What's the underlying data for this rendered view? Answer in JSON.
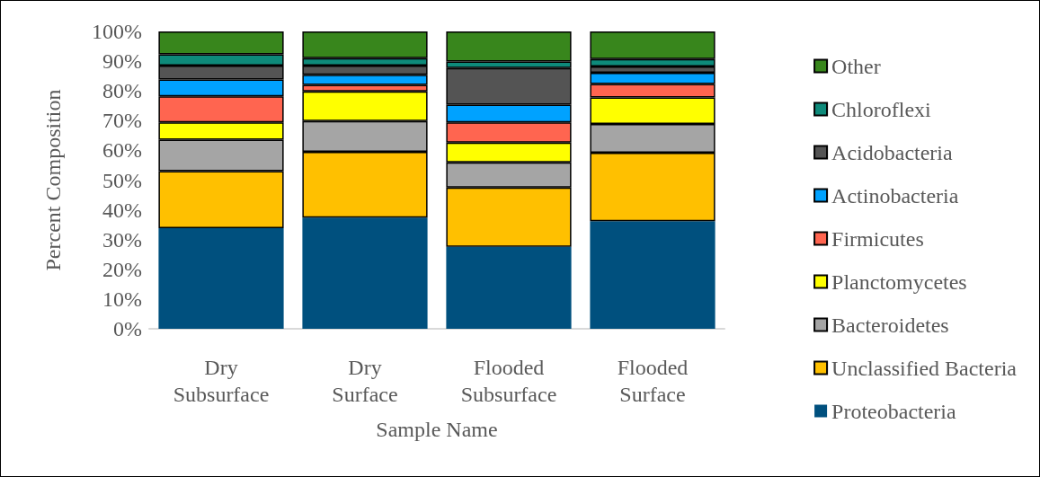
{
  "chart_data": {
    "type": "bar",
    "stacked": true,
    "xlabel": "Sample Name",
    "ylabel": "Percent Composition",
    "categories": [
      "Dry\nSubsurface",
      "Dry\nSurface",
      "Flooded\nSubsurface",
      "Flooded\nSurface"
    ],
    "ylim": [
      0,
      100
    ],
    "yticks": [
      {
        "value": 0,
        "label": "0%"
      },
      {
        "value": 10,
        "label": "10%"
      },
      {
        "value": 20,
        "label": "20%"
      },
      {
        "value": 30,
        "label": "30%"
      },
      {
        "value": 40,
        "label": "40%"
      },
      {
        "value": 50,
        "label": "50%"
      },
      {
        "value": 60,
        "label": "60%"
      },
      {
        "value": 70,
        "label": "70%"
      },
      {
        "value": 80,
        "label": "80%"
      },
      {
        "value": 90,
        "label": "90%"
      },
      {
        "value": 100,
        "label": "100%"
      }
    ],
    "grid": false,
    "legend": "right",
    "series": [
      {
        "name": "Proteobacteria",
        "color": "#00507e",
        "values": [
          33.8,
          37.4,
          27.6,
          36.2
        ]
      },
      {
        "name": "Unclassified Bacteria",
        "color": "#ffc000",
        "values": [
          19.2,
          22.1,
          19.9,
          23.0
        ]
      },
      {
        "name": "Bacteroidetes",
        "color": "#a5a5a5",
        "values": [
          10.6,
          10.4,
          8.5,
          9.7
        ]
      },
      {
        "name": "Planctomycetes",
        "color": "#ffff00",
        "values": [
          5.8,
          9.9,
          6.6,
          8.9
        ]
      },
      {
        "name": "Firmicutes",
        "color": "#ff6550",
        "values": [
          8.8,
          2.2,
          6.8,
          4.5
        ]
      },
      {
        "name": "Actinobacteria",
        "color": "#00a2ff",
        "values": [
          5.6,
          3.4,
          6.0,
          3.8
        ]
      },
      {
        "name": "Acidobacteria",
        "color": "#545454",
        "values": [
          4.7,
          3.1,
          12.3,
          2.1
        ]
      },
      {
        "name": "Chloroflexi",
        "color": "#0e8a7a",
        "values": [
          3.8,
          2.5,
          2.2,
          2.5
        ]
      },
      {
        "name": "Other",
        "color": "#38861c",
        "values": [
          7.7,
          9.0,
          10.1,
          9.3
        ]
      }
    ]
  }
}
